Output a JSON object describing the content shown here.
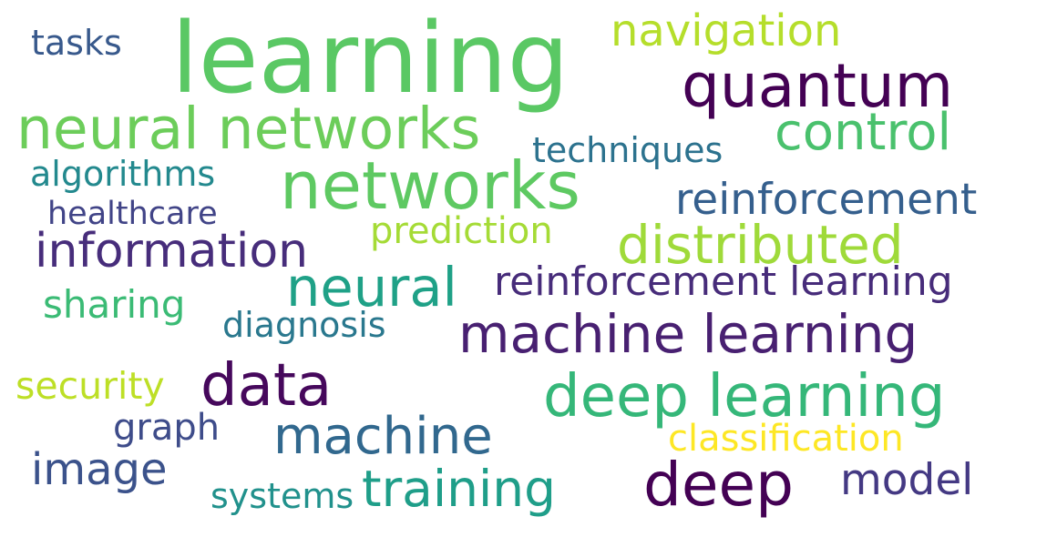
{
  "words": [
    {
      "text": "learning",
      "color": "#5ac864"
    },
    {
      "text": "quantum",
      "color": "#440154"
    },
    {
      "text": "networks",
      "color": "#5ec962"
    },
    {
      "text": "neural networks",
      "color": "#6ccd5a"
    },
    {
      "text": "machine learning",
      "color": "#482071"
    },
    {
      "text": "deep learning",
      "color": "#35b779"
    },
    {
      "text": "distributed",
      "color": "#9fda3a"
    },
    {
      "text": "information",
      "color": "#472d7b"
    },
    {
      "text": "neural",
      "color": "#1fa187"
    },
    {
      "text": "data",
      "color": "#46085c"
    },
    {
      "text": "deep",
      "color": "#440154"
    },
    {
      "text": "machine",
      "color": "#31688e"
    },
    {
      "text": "reinforcement",
      "color": "#355f8d"
    },
    {
      "text": "reinforcement learning",
      "color": "#472c7a"
    },
    {
      "text": "control",
      "color": "#4ac16d"
    },
    {
      "text": "training",
      "color": "#1f9e89"
    },
    {
      "text": "model",
      "color": "#443983"
    },
    {
      "text": "image",
      "color": "#3b528b"
    },
    {
      "text": "navigation",
      "color": "#b5de2b"
    },
    {
      "text": "classification",
      "color": "#fde725"
    },
    {
      "text": "prediction",
      "color": "#a5db36"
    },
    {
      "text": "algorithms",
      "color": "#23898e"
    },
    {
      "text": "techniques",
      "color": "#2c728e"
    },
    {
      "text": "sharing",
      "color": "#3bbb75"
    },
    {
      "text": "graph",
      "color": "#3e4c8a"
    },
    {
      "text": "diagnosis",
      "color": "#2a788e"
    },
    {
      "text": "security",
      "color": "#bddf26"
    },
    {
      "text": "healthcare",
      "color": "#414487"
    },
    {
      "text": "systems",
      "color": "#21918c"
    },
    {
      "text": "tasks",
      "color": "#38598c"
    }
  ]
}
